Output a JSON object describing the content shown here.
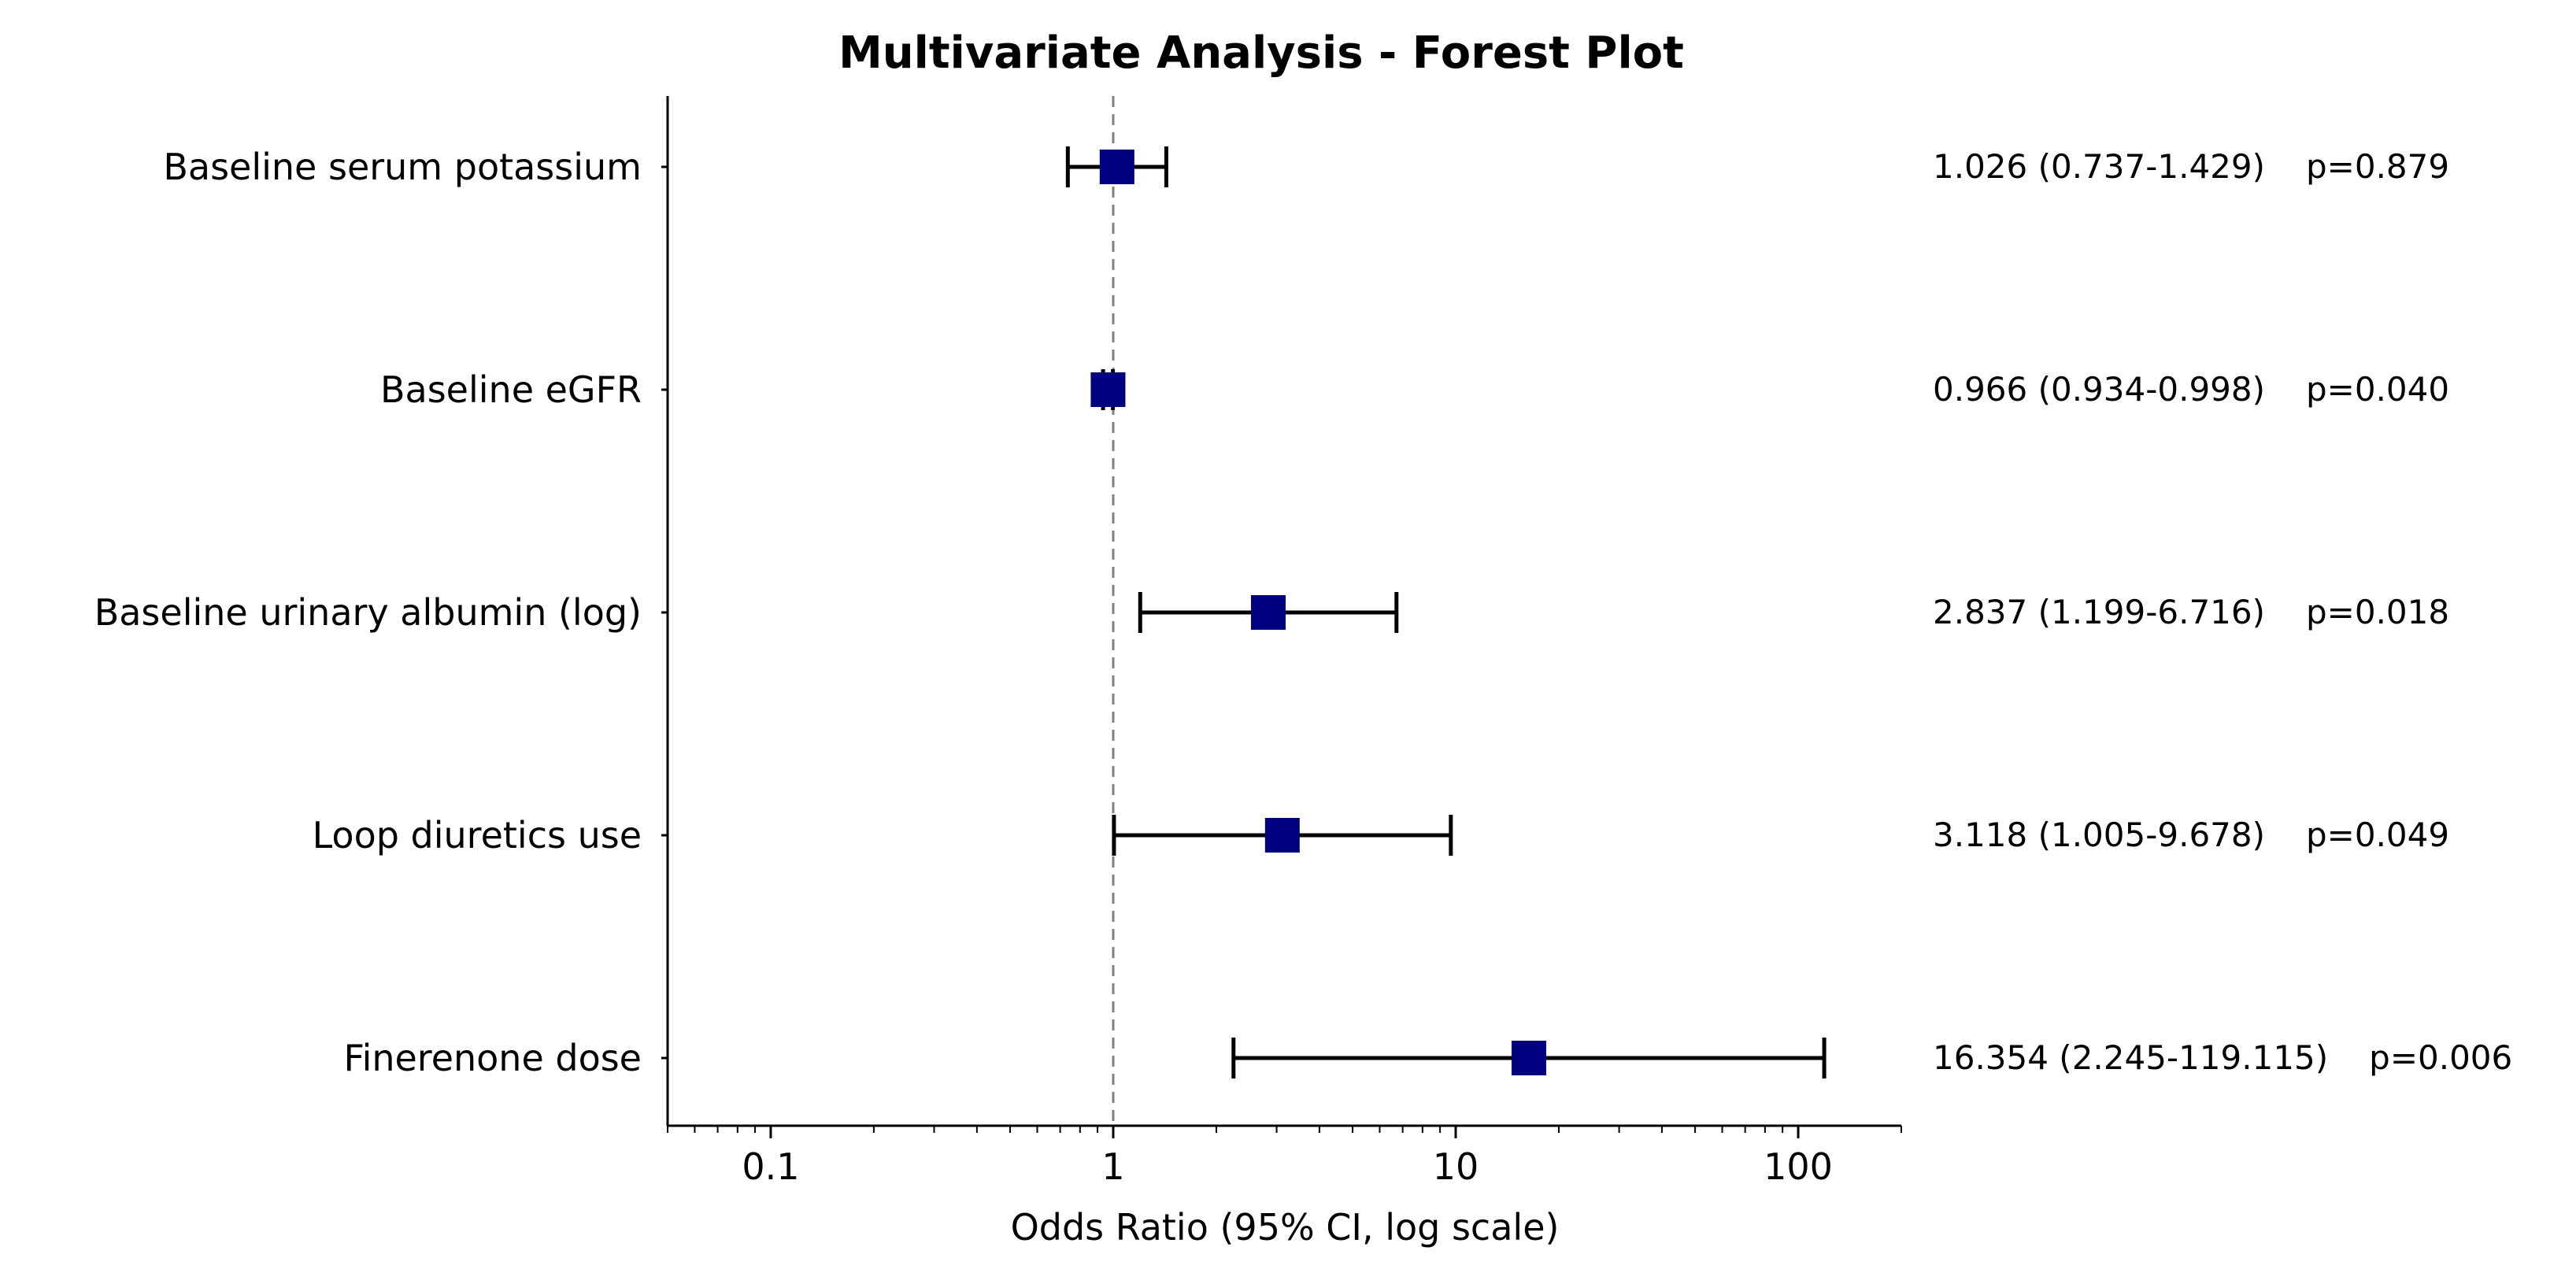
{
  "chart_data": {
    "type": "forest",
    "title": "Multivariate Analysis - Forest Plot",
    "xlabel": "Odds Ratio (95% CI, log scale)",
    "ylabel": "",
    "x_scale": "log",
    "xlim": [
      0.05,
      200
    ],
    "x_ticks": [
      {
        "value": 0.1,
        "label": "0.1"
      },
      {
        "value": 1,
        "label": "1"
      },
      {
        "value": 10,
        "label": "10"
      },
      {
        "value": 100,
        "label": "100"
      }
    ],
    "reference_line": 1,
    "grid": false,
    "colors": {
      "marker": "#000080",
      "whisker": "#000000",
      "refline": "#808080"
    },
    "rows": [
      {
        "label": "Baseline serum potassium",
        "or": 1.026,
        "lo": 0.737,
        "hi": 1.429,
        "ci_text": "1.026 (0.737-1.429)",
        "p_text": "p=0.879"
      },
      {
        "label": "Baseline eGFR",
        "or": 0.966,
        "lo": 0.934,
        "hi": 0.998,
        "ci_text": "0.966 (0.934-0.998)",
        "p_text": "p=0.040"
      },
      {
        "label": "Baseline urinary albumin (log)",
        "or": 2.837,
        "lo": 1.199,
        "hi": 6.716,
        "ci_text": "2.837 (1.199-6.716)",
        "p_text": "p=0.018"
      },
      {
        "label": "Loop diuretics use",
        "or": 3.118,
        "lo": 1.005,
        "hi": 9.678,
        "ci_text": "3.118 (1.005-9.678)",
        "p_text": "p=0.049"
      },
      {
        "label": "Finerenone dose",
        "or": 16.354,
        "lo": 2.245,
        "hi": 119.115,
        "ci_text": "16.354 (2.245-119.115)",
        "p_text": "p=0.006"
      }
    ]
  }
}
